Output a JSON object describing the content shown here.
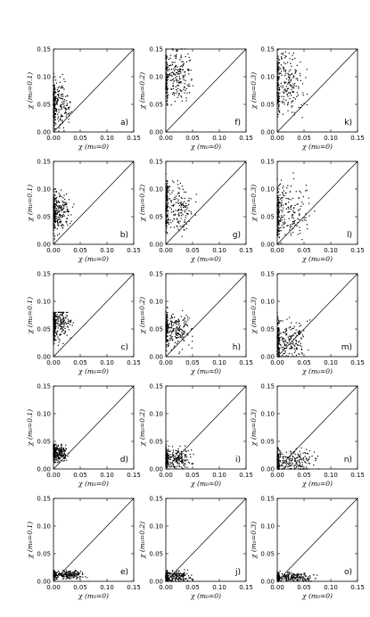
{
  "chart_data": {
    "type": "scatter",
    "layout": "grid 5 rows x 3 columns",
    "xlim": [
      0.0,
      0.15
    ],
    "ylim": [
      0.0,
      0.15
    ],
    "xticks": [
      "0.00",
      "0.05",
      "0.10",
      "0.15"
    ],
    "yticks": [
      "0.00",
      "0.05",
      "0.10",
      "0.15"
    ],
    "xlabel": "χ (m₀=0)",
    "ylabels_by_column": [
      "χ (m₀=0.1)",
      "χ (m₀=0.2)",
      "χ (m₀=0.3)"
    ],
    "reference_line": "y = x",
    "panels": [
      {
        "label": "a)",
        "row": 0,
        "col": 0,
        "ylabel": "χ (m₀=0.1)",
        "x_range": [
          0.0,
          0.075
        ],
        "y_range": [
          0.0,
          0.11
        ],
        "x_center": 0.01,
        "y_center": 0.05
      },
      {
        "label": "f)",
        "row": 0,
        "col": 1,
        "ylabel": "χ (m₀=0.2)",
        "x_range": [
          0.0,
          0.085
        ],
        "y_range": [
          0.02,
          0.15
        ],
        "x_center": 0.02,
        "y_center": 0.1
      },
      {
        "label": "k)",
        "row": 0,
        "col": 2,
        "ylabel": "χ (m₀=0.3)",
        "x_range": [
          0.0,
          0.1
        ],
        "y_range": [
          0.0,
          0.15
        ],
        "x_center": 0.02,
        "y_center": 0.09
      },
      {
        "label": "b)",
        "row": 1,
        "col": 0,
        "ylabel": "χ (m₀=0.1)",
        "x_range": [
          0.0,
          0.07
        ],
        "y_range": [
          0.0,
          0.1
        ],
        "x_center": 0.01,
        "y_center": 0.06
      },
      {
        "label": "g)",
        "row": 1,
        "col": 1,
        "ylabel": "χ (m₀=0.2)",
        "x_range": [
          0.0,
          0.1
        ],
        "y_range": [
          0.0,
          0.13
        ],
        "x_center": 0.02,
        "y_center": 0.07
      },
      {
        "label": "l)",
        "row": 1,
        "col": 2,
        "ylabel": "χ (m₀=0.3)",
        "x_range": [
          0.0,
          0.12
        ],
        "y_range": [
          0.0,
          0.14
        ],
        "x_center": 0.02,
        "y_center": 0.06
      },
      {
        "label": "c)",
        "row": 2,
        "col": 0,
        "ylabel": "χ (m₀=0.1)",
        "x_range": [
          0.0,
          0.07
        ],
        "y_range": [
          0.0,
          0.08
        ],
        "x_center": 0.01,
        "y_center": 0.06
      },
      {
        "label": "h)",
        "row": 2,
        "col": 1,
        "ylabel": "χ (m₀=0.2)",
        "x_range": [
          0.0,
          0.09
        ],
        "y_range": [
          0.0,
          0.09
        ],
        "x_center": 0.02,
        "y_center": 0.05
      },
      {
        "label": "m)",
        "row": 2,
        "col": 2,
        "ylabel": "χ (m₀=0.3)",
        "x_range": [
          0.0,
          0.11
        ],
        "y_range": [
          0.0,
          0.1
        ],
        "x_center": 0.02,
        "y_center": 0.03
      },
      {
        "label": "d)",
        "row": 3,
        "col": 0,
        "ylabel": "χ (m₀=0.1)",
        "x_range": [
          0.0,
          0.05
        ],
        "y_range": [
          0.0,
          0.045
        ],
        "x_center": 0.01,
        "y_center": 0.03
      },
      {
        "label": "i)",
        "row": 3,
        "col": 1,
        "ylabel": "χ (m₀=0.2)",
        "x_range": [
          0.0,
          0.09
        ],
        "y_range": [
          0.0,
          0.05
        ],
        "x_center": 0.02,
        "y_center": 0.02
      },
      {
        "label": "n)",
        "row": 3,
        "col": 2,
        "ylabel": "χ (m₀=0.3)",
        "x_range": [
          0.0,
          0.12
        ],
        "y_range": [
          0.0,
          0.06
        ],
        "x_center": 0.03,
        "y_center": 0.015
      },
      {
        "label": "e)",
        "row": 4,
        "col": 0,
        "ylabel": "χ (m₀=0.1)",
        "x_range": [
          0.0,
          0.09
        ],
        "y_range": [
          0.0,
          0.02
        ],
        "x_center": 0.03,
        "y_center": 0.012
      },
      {
        "label": "j)",
        "row": 4,
        "col": 1,
        "ylabel": "χ (m₀=0.2)",
        "x_range": [
          0.0,
          0.09
        ],
        "y_range": [
          0.0,
          0.025
        ],
        "x_center": 0.02,
        "y_center": 0.008
      },
      {
        "label": "o)",
        "row": 4,
        "col": 2,
        "ylabel": "χ (m₀=0.3)",
        "x_range": [
          0.0,
          0.12
        ],
        "y_range": [
          0.0,
          0.025
        ],
        "x_center": 0.03,
        "y_center": 0.007
      }
    ],
    "grid": false,
    "legend": "none"
  },
  "colors": {
    "ink": "#000000",
    "background": "#ffffff"
  }
}
